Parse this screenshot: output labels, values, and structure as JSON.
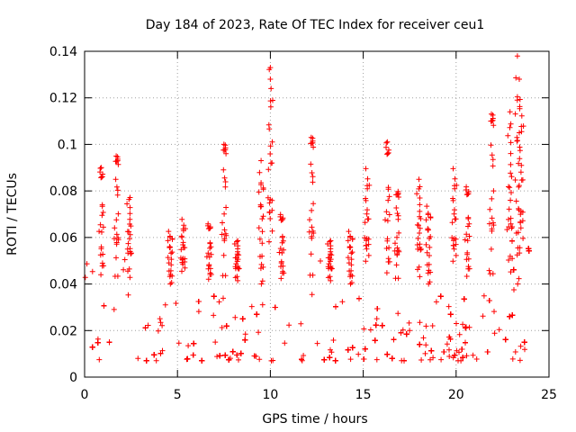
{
  "chart_data": {
    "type": "scatter",
    "title": "Day 184 of 2023, Rate Of TEC Index for receiver ceu1",
    "xlabel": "GPS time / hours",
    "ylabel": "ROTI / TECUs",
    "xlim": [
      0,
      25
    ],
    "ylim": [
      0,
      0.14
    ],
    "x_ticks": [
      0,
      5,
      10,
      15,
      20,
      25
    ],
    "x_tick_labels": [
      "0",
      "5",
      "10",
      "15",
      "20",
      "25"
    ],
    "y_ticks": [
      0,
      0.02,
      0.04,
      0.06,
      0.08,
      0.1,
      0.12,
      0.14
    ],
    "y_tick_labels": [
      "0",
      "0.02",
      "0.04",
      "0.06",
      "0.08",
      "0.1",
      "0.12",
      "0.14"
    ],
    "grid": true,
    "marker": "+",
    "color": "#ff0000",
    "series": [
      {
        "name": "ROTI",
        "x_range_hours": [
          0,
          24
        ],
        "typical_y": [
          0.008,
          0.04
        ],
        "notable_points": [
          {
            "x": 0.9,
            "y": 0.09
          },
          {
            "x": 1.7,
            "y": 0.095
          },
          {
            "x": 7.5,
            "y": 0.1
          },
          {
            "x": 10.0,
            "y": 0.133
          },
          {
            "x": 10.0,
            "y": 0.128
          },
          {
            "x": 10.1,
            "y": 0.101
          },
          {
            "x": 12.2,
            "y": 0.103
          },
          {
            "x": 16.3,
            "y": 0.101
          },
          {
            "x": 21.9,
            "y": 0.113
          },
          {
            "x": 22.9,
            "y": 0.114
          },
          {
            "x": 23.3,
            "y": 0.138
          },
          {
            "x": 23.4,
            "y": 0.128
          },
          {
            "x": 23.4,
            "y": 0.105
          },
          {
            "x": 9.5,
            "y": 0.093
          },
          {
            "x": 18.0,
            "y": 0.085
          }
        ]
      }
    ]
  }
}
